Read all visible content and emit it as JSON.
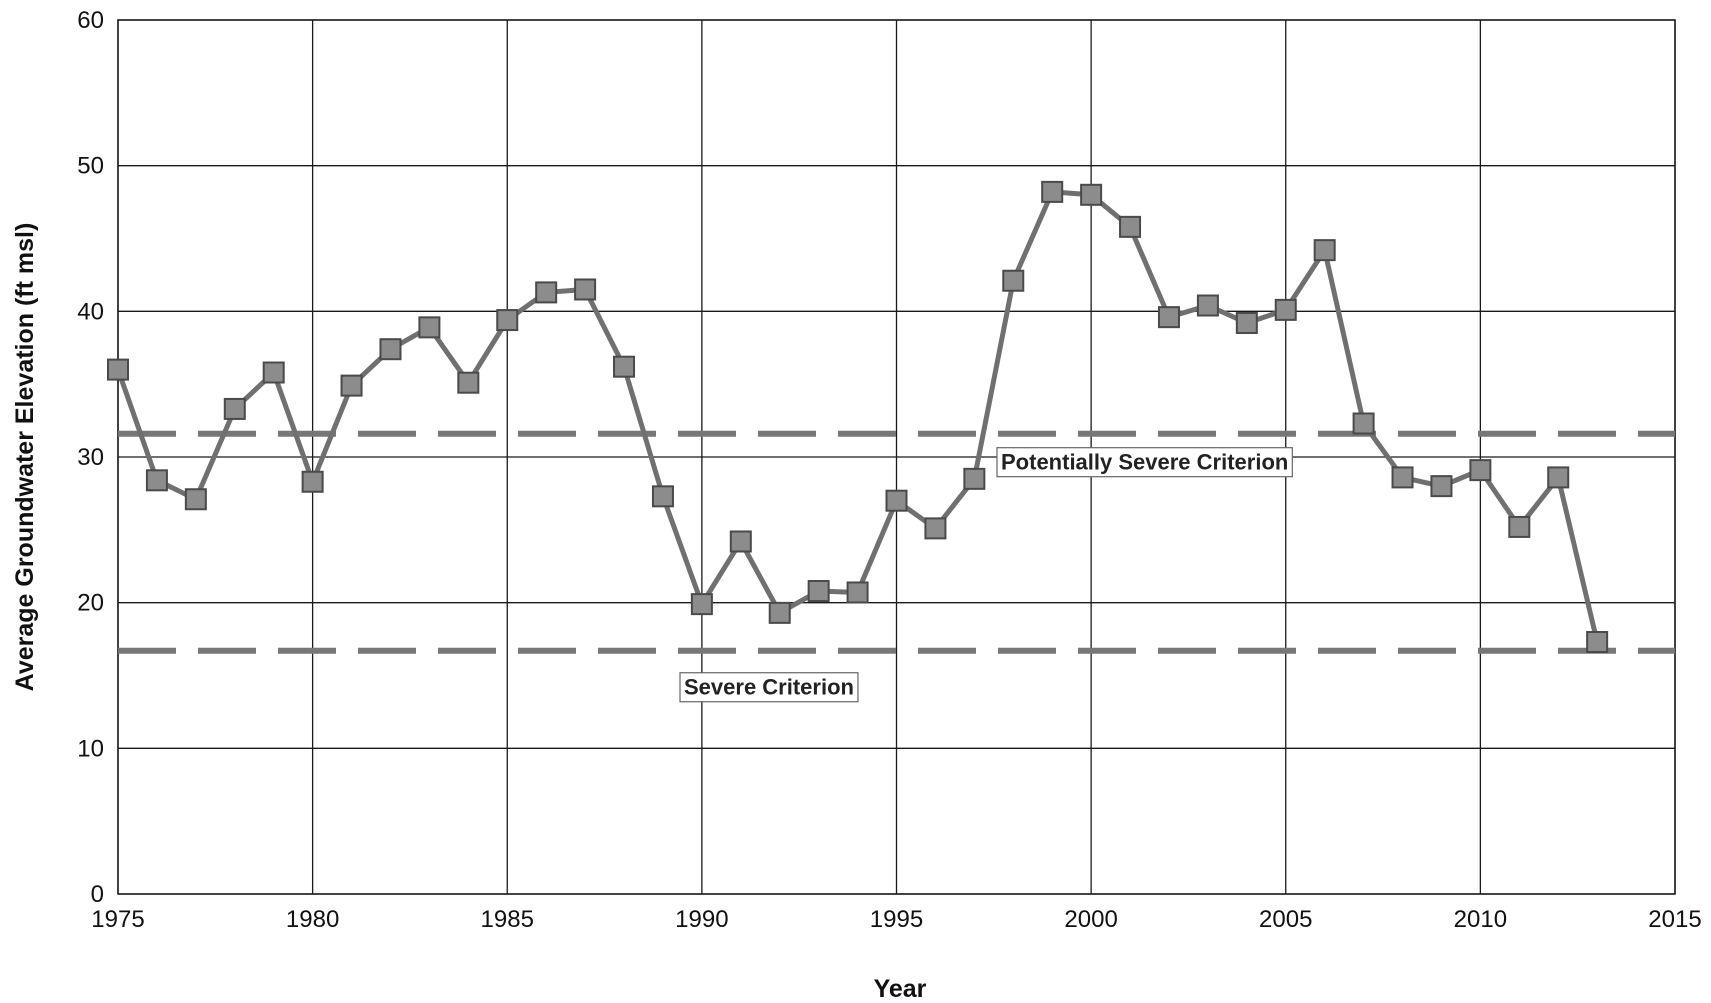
{
  "chart_data": {
    "type": "line",
    "xlabel": "Year",
    "ylabel": "Average Groundwater Elevation (ft msl)",
    "xlim": [
      1975,
      2015
    ],
    "ylim": [
      0,
      60
    ],
    "x_ticks": [
      1975,
      1980,
      1985,
      1990,
      1995,
      2000,
      2005,
      2010,
      2015
    ],
    "y_ticks": [
      0,
      10,
      20,
      30,
      40,
      50,
      60
    ],
    "grid": true,
    "series": [
      {
        "color": "#707070",
        "marker": "square",
        "x": [
          1975,
          1976,
          1977,
          1978,
          1979,
          1980,
          1981,
          1982,
          1983,
          1984,
          1985,
          1986,
          1987,
          1988,
          1989,
          1990,
          1991,
          1992,
          1993,
          1994,
          1995,
          1996,
          1997,
          1998,
          1999,
          2000,
          2001,
          2002,
          2003,
          2004,
          2005,
          2006,
          2007,
          2008,
          2009,
          2010,
          2011,
          2012,
          2013
        ],
        "values": [
          36.0,
          28.4,
          27.1,
          33.3,
          35.8,
          28.3,
          34.9,
          37.4,
          38.9,
          35.1,
          39.4,
          41.3,
          41.5,
          36.2,
          27.3,
          19.9,
          24.2,
          19.3,
          20.8,
          20.7,
          27.0,
          25.1,
          28.5,
          42.1,
          48.2,
          48.0,
          45.8,
          39.6,
          40.4,
          39.2,
          40.1,
          44.2,
          32.3,
          28.6,
          28.0,
          29.1,
          25.2,
          28.6,
          17.3
        ]
      }
    ],
    "reference_lines": [
      {
        "label": "Potentially Severe Criterion",
        "value": 31.6,
        "style": "dashed",
        "color": "#777777"
      },
      {
        "label": "Severe Criterion",
        "value": 16.7,
        "style": "dashed",
        "color": "#777777"
      }
    ]
  }
}
